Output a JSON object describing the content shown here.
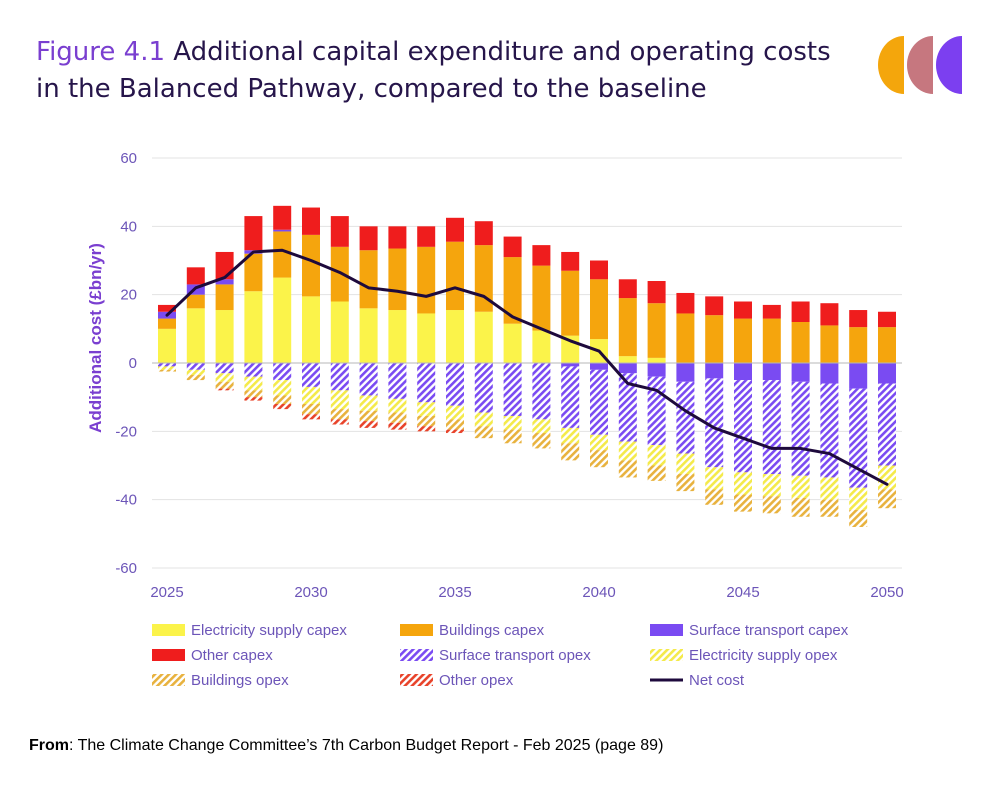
{
  "title": {
    "figure_label": "Figure 4.1",
    "text": "Additional capital expenditure and operating costs in the Balanced Pathway, compared to the baseline"
  },
  "logo": {
    "icon": "ccc-logo-icon",
    "colors": [
      "#f4a60c",
      "#c6777f",
      "#7c3ff0"
    ]
  },
  "source": {
    "label": "From",
    "text": ": The Climate Change Committee’s 7th Carbon Budget Report - Feb 2025 (page 89)"
  },
  "chart_data": {
    "type": "bar",
    "stacked": true,
    "ylabel": "Additional cost (£bn/yr)",
    "xlabel": "",
    "ylim": [
      -60,
      60
    ],
    "yticks": [
      60,
      40,
      20,
      0,
      -20,
      -40,
      -60
    ],
    "xticks": [
      2025,
      2030,
      2035,
      2040,
      2045,
      2050
    ],
    "grid": true,
    "legend_position": "bottom",
    "categories": [
      2025,
      2026,
      2027,
      2028,
      2029,
      2030,
      2031,
      2032,
      2033,
      2034,
      2035,
      2036,
      2037,
      2038,
      2039,
      2040,
      2041,
      2042,
      2043,
      2044,
      2045,
      2046,
      2047,
      2048,
      2049,
      2050
    ],
    "series": [
      {
        "name": "Electricity supply capex",
        "color": "#fbf34a",
        "pattern": "solid",
        "values": [
          10,
          16,
          15.5,
          21,
          25,
          19.5,
          18,
          16,
          15.5,
          14.5,
          15.5,
          15,
          11.5,
          9.5,
          8,
          7,
          2,
          1.5,
          0,
          0,
          0,
          0,
          0,
          0,
          0,
          0
        ]
      },
      {
        "name": "Buildings capex",
        "color": "#f5a50d",
        "pattern": "solid",
        "values": [
          3,
          4,
          7.5,
          11,
          13.5,
          18,
          16,
          17,
          18,
          19.5,
          20,
          19.5,
          19.5,
          19,
          19,
          17.5,
          17,
          16,
          14.5,
          14,
          13,
          13,
          12,
          11,
          10.5,
          10.5
        ]
      },
      {
        "name": "Surface transport capex",
        "color": "#7a4bf2",
        "pattern": "solid",
        "values": [
          2,
          3,
          1.5,
          1,
          0.5,
          0,
          0,
          0,
          0,
          0,
          0,
          0,
          0,
          0,
          -1,
          -2,
          -3,
          -4,
          -5.5,
          -4.5,
          -5,
          -5,
          -5.5,
          -6,
          -7.5,
          -6
        ]
      },
      {
        "name": "Other capex",
        "color": "#ef1d1d",
        "pattern": "solid",
        "values": [
          2,
          5,
          8,
          10,
          7,
          8,
          9,
          7,
          6.5,
          6,
          7,
          7,
          6,
          6,
          5.5,
          5.5,
          5.5,
          6.5,
          6,
          5.5,
          5,
          4,
          6,
          6.5,
          5,
          4.5
        ]
      },
      {
        "name": "Surface transport opex",
        "color": "#7a4bf2",
        "pattern": "hatch",
        "values": [
          -1,
          -2,
          -3,
          -4,
          -5,
          -7,
          -8,
          -9.5,
          -10.5,
          -11.5,
          -12.5,
          -14.5,
          -15.5,
          -16.5,
          -18,
          -19,
          -20,
          -20,
          -21,
          -26,
          -27,
          -27.5,
          -27.5,
          -27.5,
          -29,
          -24
        ]
      },
      {
        "name": "Electricity supply opex",
        "color": "#f4ea4a",
        "pattern": "hatch",
        "values": [
          -1,
          -1.5,
          -2.5,
          -4,
          -4.5,
          -5,
          -5.5,
          -4.5,
          -4,
          -4,
          -4,
          -4,
          -4,
          -4,
          -4.5,
          -4.5,
          -5.5,
          -6,
          -6,
          -6.5,
          -6.5,
          -6.5,
          -6.5,
          -6.5,
          -6.5,
          -7
        ]
      },
      {
        "name": "Buildings opex",
        "color": "#e8b23e",
        "pattern": "hatch",
        "values": [
          -0.5,
          -1.5,
          -2,
          -2,
          -2.5,
          -3,
          -3,
          -3,
          -3,
          -3,
          -3,
          -3.5,
          -4,
          -4.5,
          -5,
          -5,
          -5,
          -4.5,
          -5,
          -4.5,
          -5,
          -5,
          -5.5,
          -5,
          -5,
          -5.5
        ]
      },
      {
        "name": "Other opex",
        "color": "#e8432a",
        "pattern": "hatch",
        "values": [
          0,
          0,
          -0.5,
          -1,
          -1.5,
          -1.5,
          -1.5,
          -2,
          -2,
          -1.5,
          -1,
          0,
          0,
          0,
          0,
          0,
          0,
          0,
          0,
          0,
          0,
          0,
          0,
          0,
          0,
          0
        ]
      },
      {
        "name": "Net cost",
        "color": "#1e0a3c",
        "type": "line",
        "values": [
          14,
          22,
          25,
          32.5,
          33,
          30,
          26.5,
          22,
          21,
          19.5,
          22,
          19.5,
          13.5,
          10,
          6.5,
          3.5,
          -6,
          -8,
          -14,
          -19,
          -22,
          -25,
          -25,
          -26.5,
          -31,
          -35.5
        ]
      }
    ]
  }
}
